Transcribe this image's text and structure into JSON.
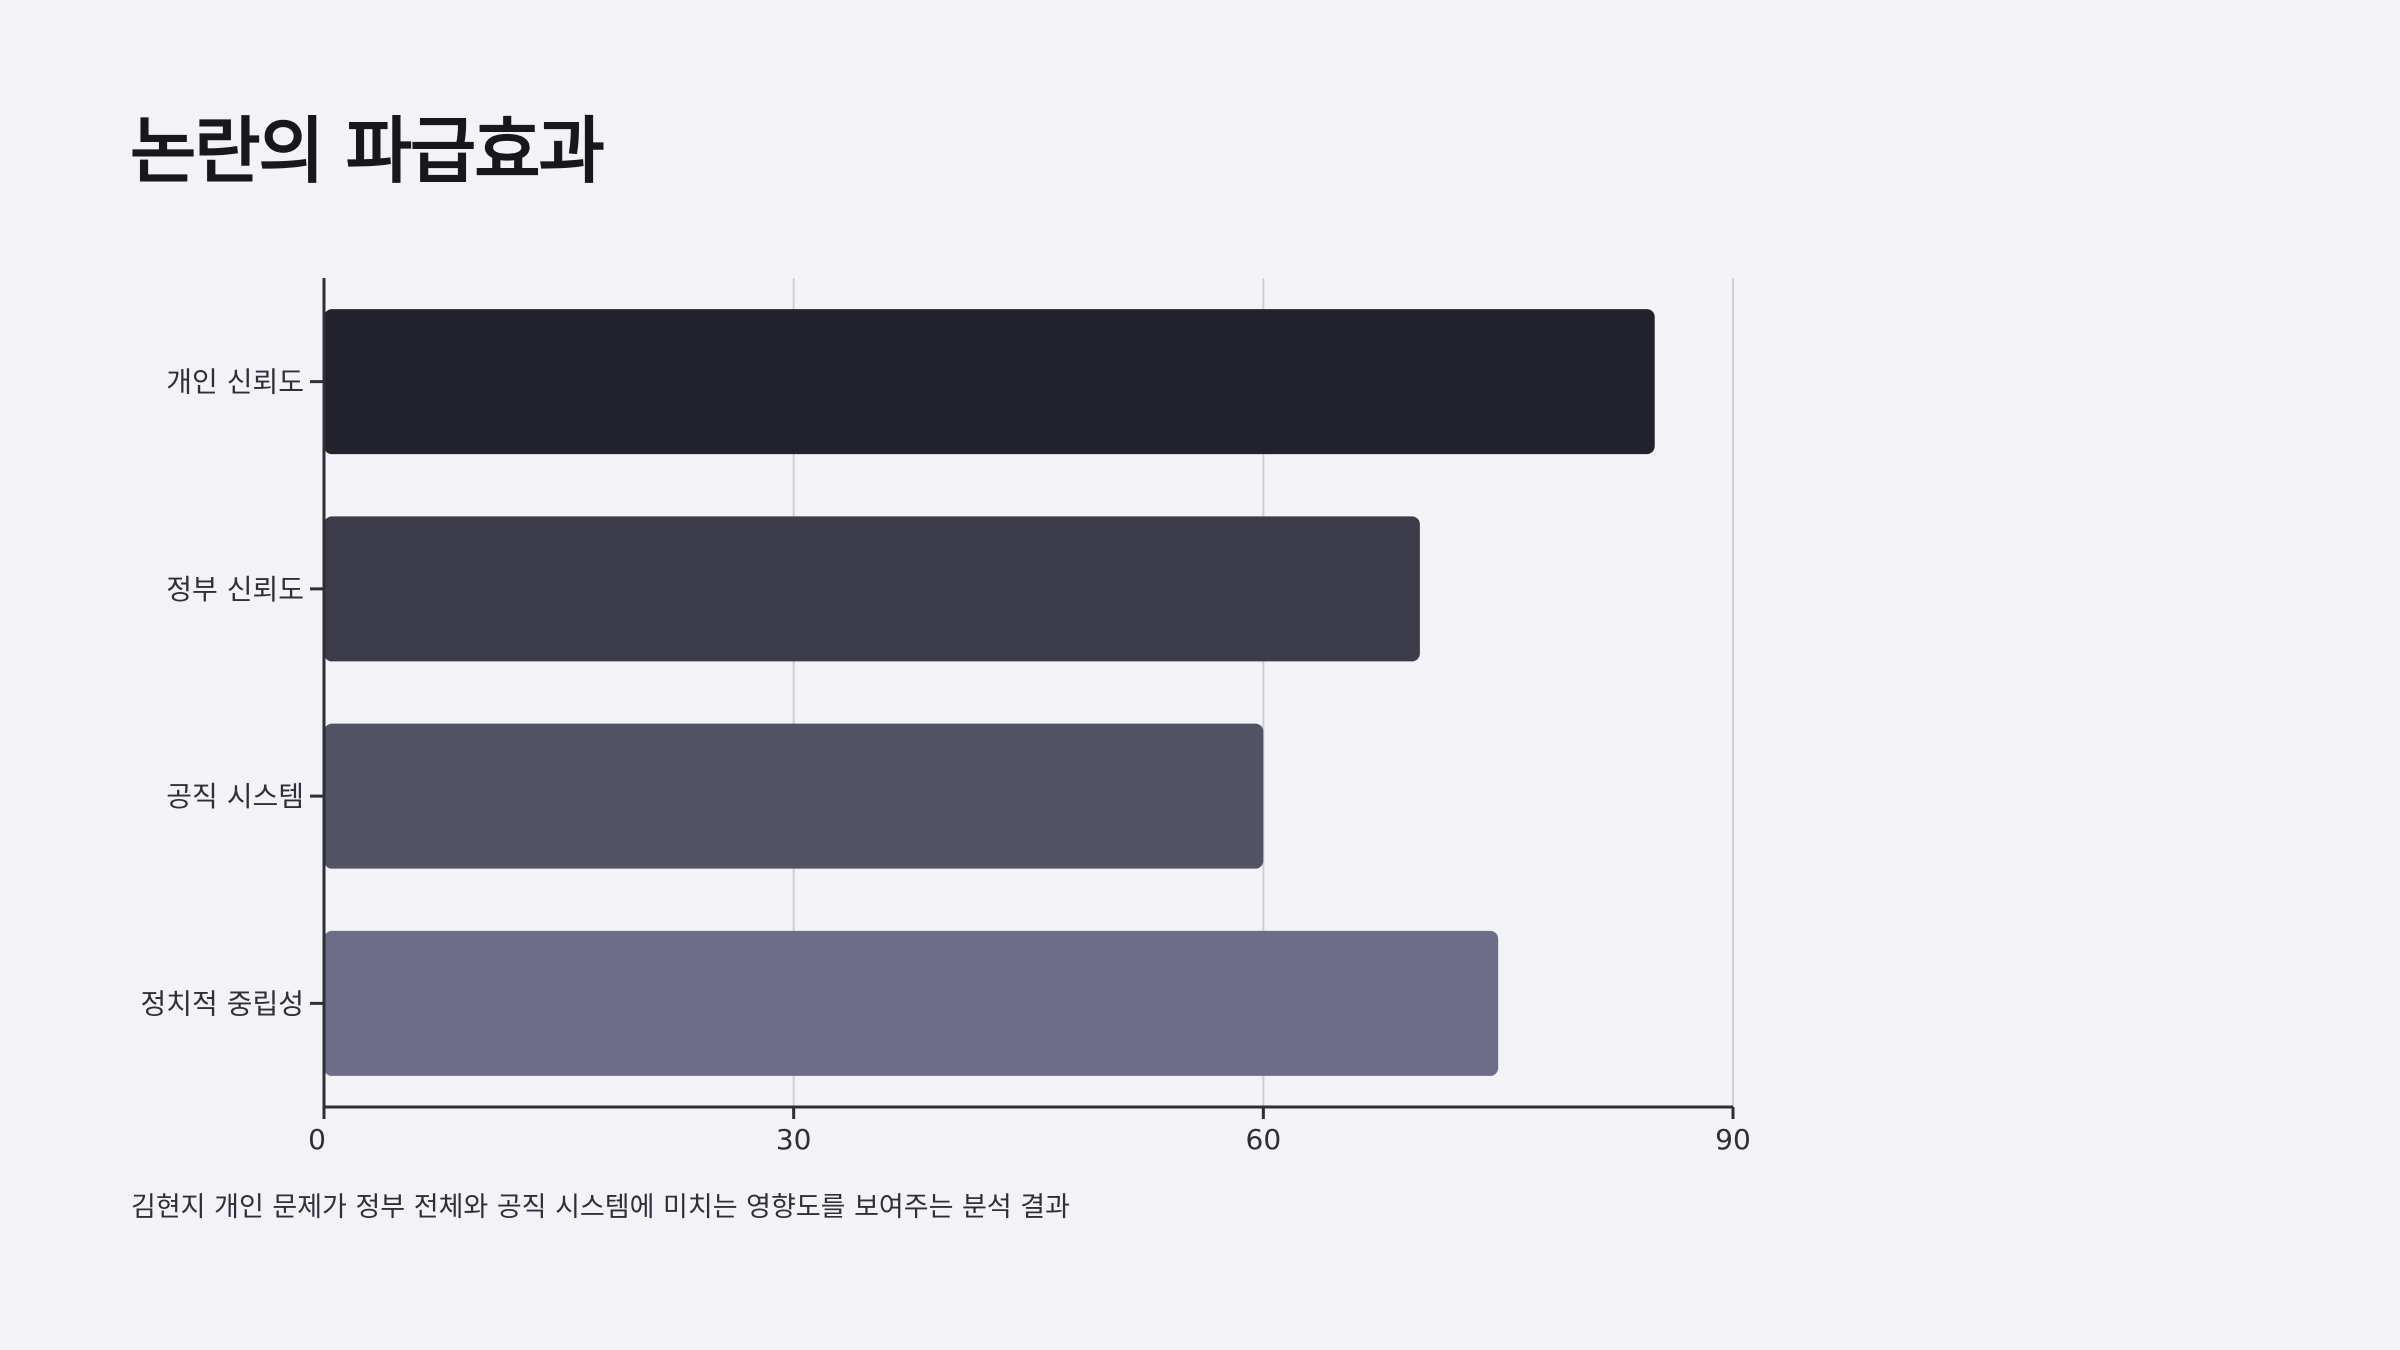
{
  "title": "논란의 파급효과",
  "caption": "김현지 개인 문제가 정부 전체와 공직 시스템에 미치는 영향도를 보여주는 분석 결과",
  "chart_data": {
    "type": "bar",
    "orientation": "horizontal",
    "categories": [
      "개인 신뢰도",
      "정부 신뢰도",
      "공직 시스템",
      "정치적 중립성"
    ],
    "values": [
      85,
      70,
      60,
      75
    ],
    "colors": [
      "#22222c",
      "#3c3b4a",
      "#535366",
      "#6d6d87"
    ],
    "xlim": [
      0,
      90
    ],
    "xticks": [
      0,
      30,
      60,
      90
    ],
    "grid": true,
    "legend": "none"
  }
}
